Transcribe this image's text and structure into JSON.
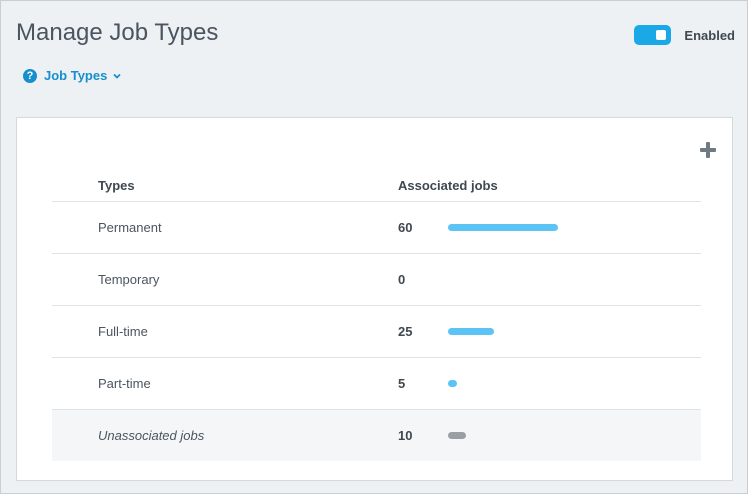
{
  "page": {
    "title": "Manage Job Types"
  },
  "toggle": {
    "label": "Enabled",
    "state": "on",
    "color": "#1ba8e6"
  },
  "nav": {
    "dropdown_label": "Job Types",
    "help_icon": "?"
  },
  "table": {
    "headers": {
      "types": "Types",
      "associated": "Associated jobs"
    },
    "max": 60,
    "rows": [
      {
        "name": "Permanent",
        "count": "60",
        "value": 60,
        "color": "#5cc3f5"
      },
      {
        "name": "Temporary",
        "count": "0",
        "value": 0,
        "color": "#5cc3f5"
      },
      {
        "name": "Full-time",
        "count": "25",
        "value": 25,
        "color": "#5cc3f5"
      },
      {
        "name": "Part-time",
        "count": "5",
        "value": 5,
        "color": "#5cc3f5"
      },
      {
        "name": "Unassociated jobs",
        "count": "10",
        "value": 10,
        "color": "#9a9fa5"
      }
    ]
  }
}
